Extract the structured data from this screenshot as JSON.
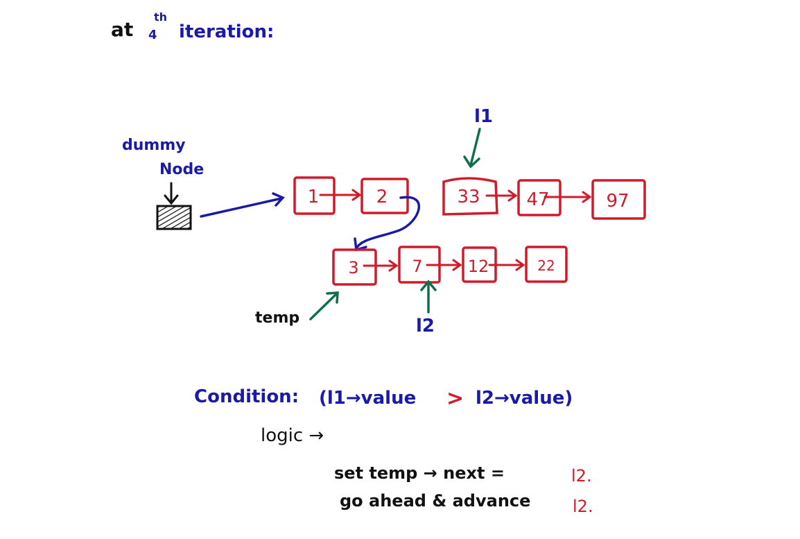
{
  "heading": {
    "prefix": "at",
    "number": "4",
    "suffix": "th",
    "rest": "iteration:"
  },
  "dummy": {
    "label_line1": "dummy",
    "label_line2": "Node"
  },
  "list_top": [
    "1",
    "2",
    "33",
    "47",
    "97"
  ],
  "list_bottom": [
    "3",
    "7",
    "12",
    "22"
  ],
  "pointers": {
    "l1": "l1",
    "l2": "l2",
    "temp": "temp"
  },
  "condition": {
    "label": "Condition:",
    "left": "(l1→value",
    "op": ">",
    "right": "l2→value)"
  },
  "logic": {
    "label": "logic →",
    "line1_text": "set temp → next =",
    "line1_value": "l2.",
    "line2_text": "go ahead & advance",
    "line2_value": "l2."
  },
  "colors": {
    "ink": "#111111",
    "blue": "#1a1aa6",
    "red": "#d11a2a",
    "green": "#0f6e4e"
  }
}
